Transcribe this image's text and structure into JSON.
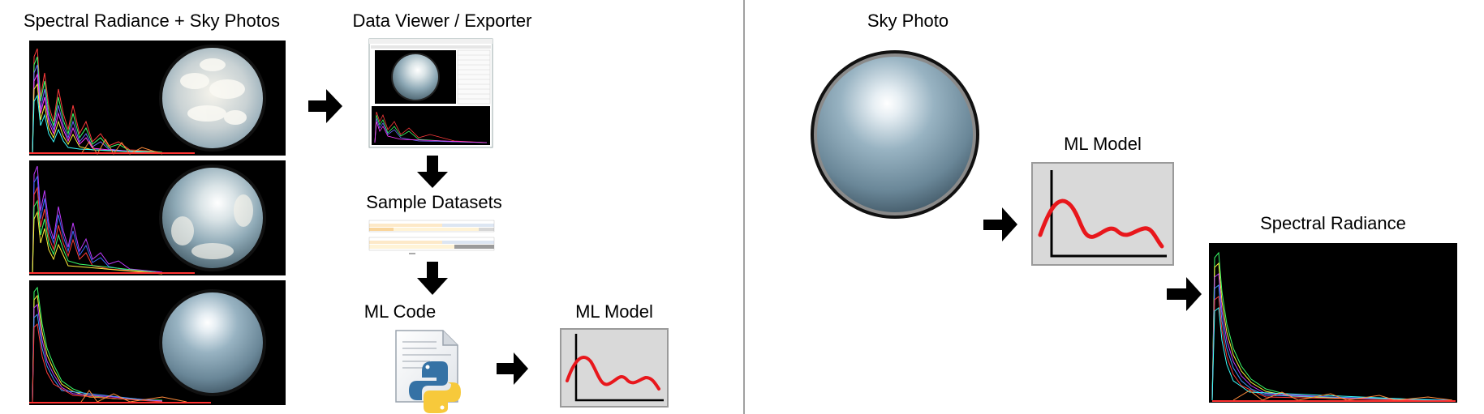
{
  "left_panel": {
    "stage1_label": "Spectral Radiance + Sky Photos",
    "viewer_label": "Data Viewer / Exporter",
    "datasets_label": "Sample Datasets",
    "code_label": "ML Code",
    "model_label": "ML Model"
  },
  "right_panel": {
    "sky_label": "Sky Photo",
    "model_label": "ML Model",
    "output_label": "Spectral Radiance"
  },
  "colors": {
    "arrow": "#000000",
    "model_curve": "#e8171c",
    "model_box": "#d9d9d9",
    "divider": "#808080"
  }
}
